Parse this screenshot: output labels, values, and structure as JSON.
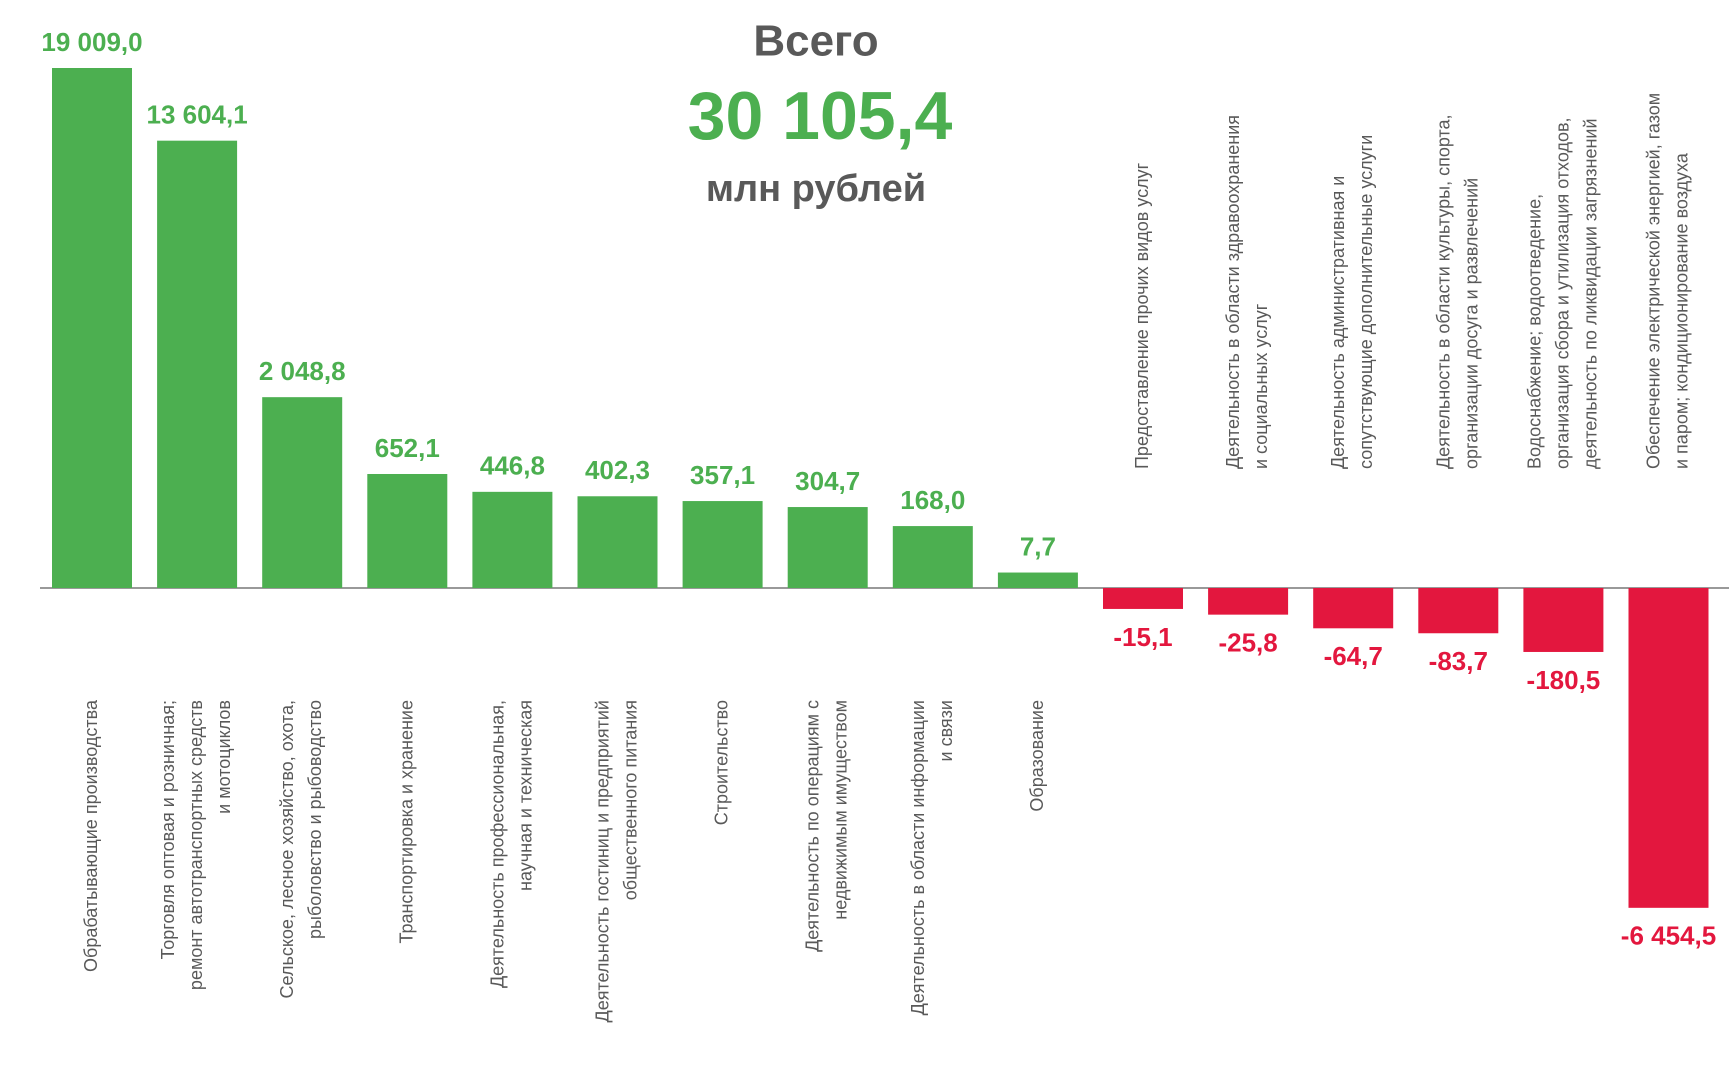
{
  "chart_data": {
    "type": "bar",
    "title": "Всего",
    "total": "30 105,4",
    "unit": "млн рублей",
    "categories": [
      [
        "Обрабатывающие производства"
      ],
      [
        "Торговля оптовая и розничная;",
        "ремонт автотранспортных средств",
        "и мотоциклов"
      ],
      [
        "Сельское, лесное хозяйство, охота,",
        "рыболовство и рыбоводство"
      ],
      [
        "Транспортировка и хранение"
      ],
      [
        "Деятельность профессиональная,",
        "научная и техническая"
      ],
      [
        "Деятельность гостиниц и предприятий",
        "общественного питания"
      ],
      [
        "Строительство"
      ],
      [
        "Деятельность по операциям с",
        "недвижимым имуществом"
      ],
      [
        "Деятельность в области информации",
        "и связи"
      ],
      [
        "Образование"
      ],
      [
        "Предоставление прочих видов услуг"
      ],
      [
        "Деятельность в области здравоохранения",
        "и социальных услуг"
      ],
      [
        "Деятельность административная и",
        "сопутствующие дополнительные услуги"
      ],
      [
        "Деятельность в  области культуры, спорта,",
        "организации досуга и развлечений"
      ],
      [
        "Водоснабжение; водоотведение,",
        "организация сбора  и утилизация отходов,",
        "деятельность по ликвидации загрязнений"
      ],
      [
        "Обеспечение электрической энергией, газом",
        "и паром; кондиционирование  воздуха"
      ]
    ],
    "values": [
      19009.0,
      13604.1,
      2048.8,
      652.1,
      446.8,
      402.3,
      357.1,
      304.7,
      168.0,
      7.7,
      -15.1,
      -25.8,
      -64.7,
      -83.7,
      -180.5,
      -6454.5
    ],
    "value_labels": [
      "19 009,0",
      "13 604,1",
      "2 048,8",
      "652,1",
      "446,8",
      "402,3",
      "357,1",
      "304,7",
      "168,0",
      "7,7",
      "-15,1",
      "-25,8",
      "-64,7",
      "-83,7",
      "-180,5",
      "-6 454,5"
    ],
    "color": "#4caf50",
    "negative_color": "#e3173e"
  }
}
